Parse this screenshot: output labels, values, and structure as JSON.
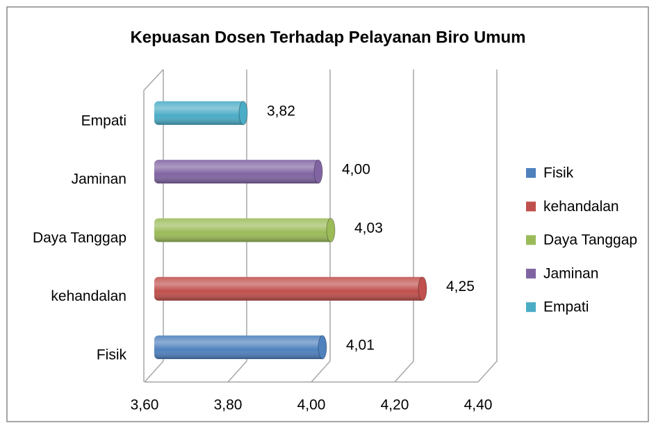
{
  "chart_data": {
    "type": "bar",
    "orientation": "horizontal",
    "title": "Kepuasan Dosen Terhadap Pelayanan Biro Umum",
    "categories": [
      "Fisik",
      "kehandalan",
      "Daya Tanggap",
      "Jaminan",
      "Empati"
    ],
    "values": [
      4.01,
      4.25,
      4.03,
      4.0,
      3.82
    ],
    "value_labels": [
      "4,01",
      "4,25",
      "4,03",
      "4,00",
      "3,82"
    ],
    "colors": [
      "#4f81bd",
      "#c0504d",
      "#9bbb59",
      "#8064a2",
      "#4bacc6"
    ],
    "xlim": [
      3.6,
      4.4
    ],
    "xticks": [
      {
        "value": 3.6,
        "label": "3,60"
      },
      {
        "value": 3.8,
        "label": "3,80"
      },
      {
        "value": 4.0,
        "label": "4,00"
      },
      {
        "value": 4.2,
        "label": "4,20"
      },
      {
        "value": 4.4,
        "label": "4,40"
      }
    ],
    "grid": true,
    "legend": "right"
  }
}
